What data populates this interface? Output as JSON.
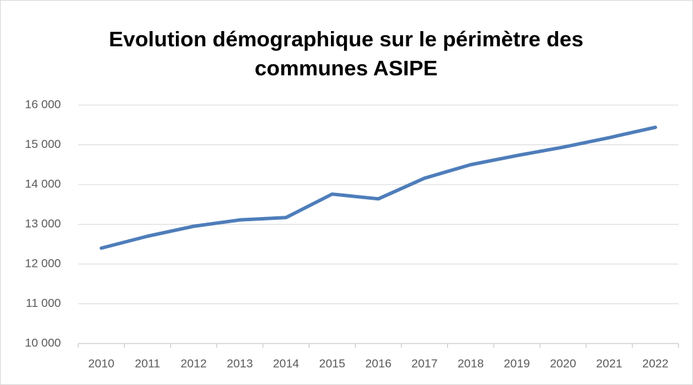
{
  "chart_data": {
    "type": "line",
    "title": "Evolution démographique sur le périmètre des communes ASIPE",
    "categories": [
      "2010",
      "2011",
      "2012",
      "2013",
      "2014",
      "2015",
      "2016",
      "2017",
      "2018",
      "2019",
      "2020",
      "2021",
      "2022"
    ],
    "values": [
      12400,
      12700,
      12950,
      13110,
      13170,
      13760,
      13640,
      14160,
      14500,
      14730,
      14940,
      15180,
      15440
    ],
    "color": "#4e7dba",
    "ylim": [
      10000,
      16000
    ],
    "yticks": [
      {
        "value": 10000,
        "label": "10 000"
      },
      {
        "value": 11000,
        "label": "11 000"
      },
      {
        "value": 12000,
        "label": "12 000"
      },
      {
        "value": 13000,
        "label": "13 000"
      },
      {
        "value": 14000,
        "label": "14 000"
      },
      {
        "value": 15000,
        "label": "15 000"
      },
      {
        "value": 16000,
        "label": "16 000"
      }
    ],
    "grid": true
  }
}
